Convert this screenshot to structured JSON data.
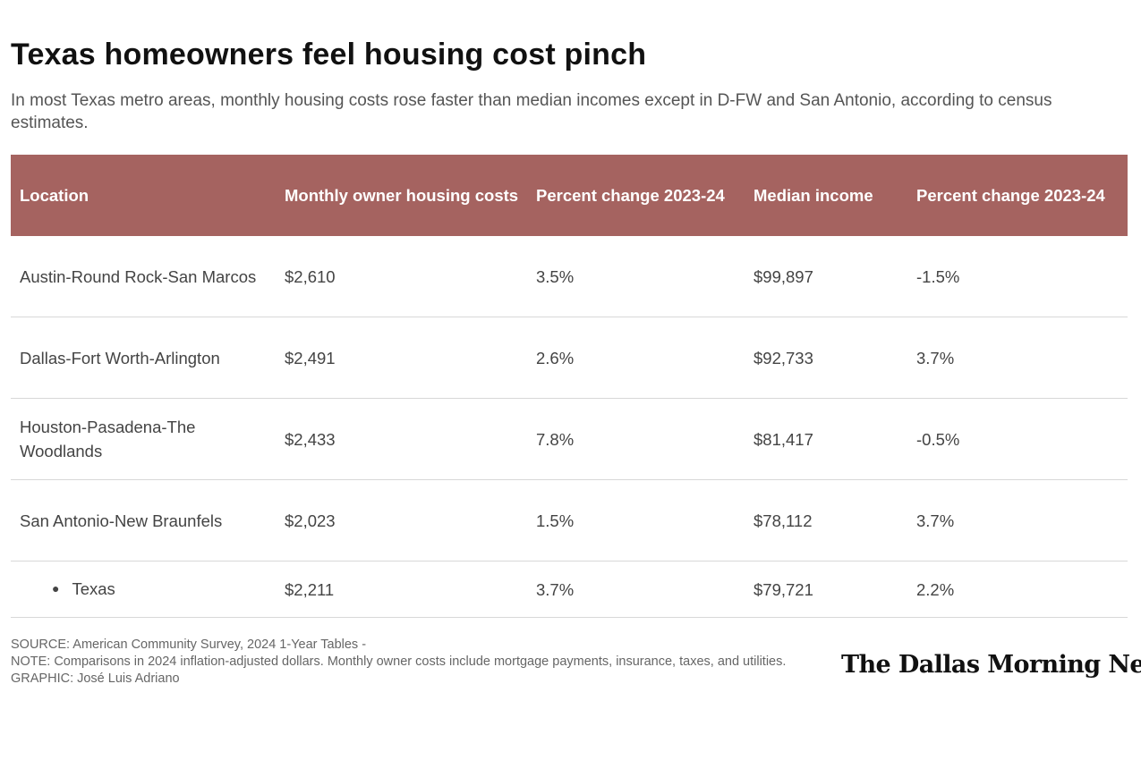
{
  "title": "Texas homeowners feel housing cost pinch",
  "subtitle": "In most Texas metro areas, monthly housing costs rose faster than median incomes except in D-FW and San Antonio, according to census estimates.",
  "chart_data": {
    "type": "table",
    "header_color": "#a56360",
    "columns": [
      "Location",
      "Monthly owner housing costs",
      "Percent change 2023-24",
      "Median income",
      "Percent change 2023-24"
    ],
    "rows": [
      [
        "Austin-Round Rock-San Marcos",
        "$2,610",
        "3.5%",
        "$99,897",
        "-1.5%"
      ],
      [
        "Dallas-Fort Worth-Arlington",
        "$2,491",
        "2.6%",
        "$92,733",
        "3.7%"
      ],
      [
        "Houston-Pasadena-The Woodlands",
        "$2,433",
        "7.8%",
        "$81,417",
        "-0.5%"
      ],
      [
        "San Antonio-New Braunfels",
        "$2,023",
        "1.5%",
        "$78,112",
        "3.7%"
      ],
      [
        "Texas",
        "$2,211",
        "3.7%",
        "$79,721",
        "2.2%"
      ]
    ]
  },
  "footer": {
    "source": "SOURCE: American Community Survey, 2024 1-Year Tables -",
    "note": "NOTE: Comparisons in 2024 inflation-adjusted dollars. Monthly owner costs include mortgage payments, insurance, taxes, and utilities.",
    "graphic": "GRAPHIC: José Luis Adriano"
  },
  "logo": "The Dallas Morning News"
}
